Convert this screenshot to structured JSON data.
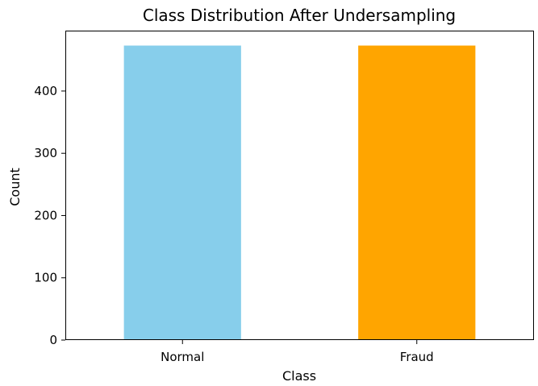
{
  "chart_data": {
    "type": "bar",
    "title": "Class Distribution After Undersampling",
    "xlabel": "Class",
    "ylabel": "Count",
    "categories": [
      "Normal",
      "Fraud"
    ],
    "values": [
      473,
      473
    ],
    "colors": [
      "#87ceeb",
      "#ffa500"
    ],
    "ylim": [
      0,
      497
    ],
    "yticks": [
      0,
      100,
      200,
      300,
      400
    ],
    "grid": false,
    "legend": false
  }
}
